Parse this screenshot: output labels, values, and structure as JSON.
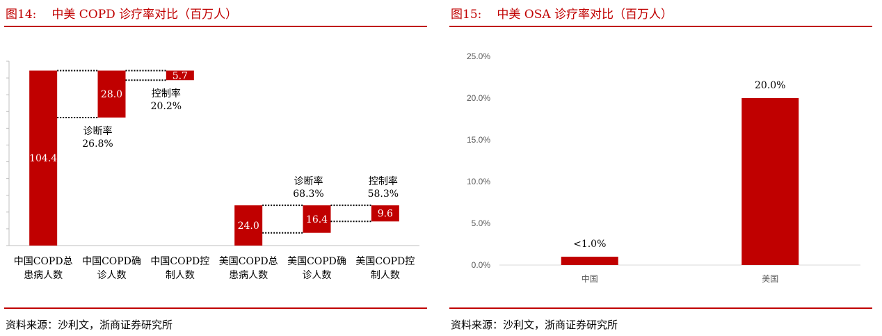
{
  "left_panel": {
    "figure_no": "图14:",
    "title": "中美 COPD 诊疗率对比（百万人）",
    "source": "资料来源：沙利文，浙商证券研究所"
  },
  "right_panel": {
    "figure_no": "图15:",
    "title": "中美 OSA 诊疗率对比（百万人）",
    "source": "资料来源：沙利文，浙商证券研究所"
  },
  "colors": {
    "accent": "#c00000",
    "bar": "#c00000"
  },
  "chart_data": [
    {
      "type": "bar",
      "subtype": "waterfall",
      "categories": [
        [
          "中国COPD总",
          "患病人数"
        ],
        [
          "中国COPD确",
          "诊人数"
        ],
        [
          "中国COPD控",
          "制人数"
        ],
        [
          "美国COPD总",
          "患病人数"
        ],
        [
          "美国COPD确",
          "诊人数"
        ],
        [
          "美国COPD控",
          "制人数"
        ]
      ],
      "values": [
        104.4,
        28.0,
        5.7,
        24.0,
        16.4,
        9.6
      ],
      "data_labels": [
        "104.4",
        "28.0",
        "5.7",
        "24.0",
        "16.4",
        "9.6"
      ],
      "annotations": [
        {
          "between": [
            0,
            1
          ],
          "lines": [
            "诊断率",
            "26.8%"
          ]
        },
        {
          "between": [
            1,
            2
          ],
          "lines": [
            "控制率",
            "20.2%"
          ]
        },
        {
          "between": [
            3,
            4
          ],
          "lines": [
            "诊断率",
            "68.3%"
          ]
        },
        {
          "between": [
            4,
            5
          ],
          "lines": [
            "控制率",
            "58.3%"
          ]
        }
      ],
      "ylim": [
        0,
        110
      ],
      "y_tick_labels_shown": false,
      "grid": false
    },
    {
      "type": "bar",
      "categories": [
        "中国",
        "美国"
      ],
      "values": [
        1.0,
        20.0
      ],
      "data_labels": [
        "<1.0%",
        "20.0%"
      ],
      "y_ticks": [
        0,
        5,
        10,
        15,
        20,
        25
      ],
      "y_tick_labels": [
        "0.0%",
        "5.0%",
        "10.0%",
        "15.0%",
        "20.0%",
        "25.0%"
      ],
      "ylim": [
        0,
        25
      ],
      "grid": false
    }
  ]
}
